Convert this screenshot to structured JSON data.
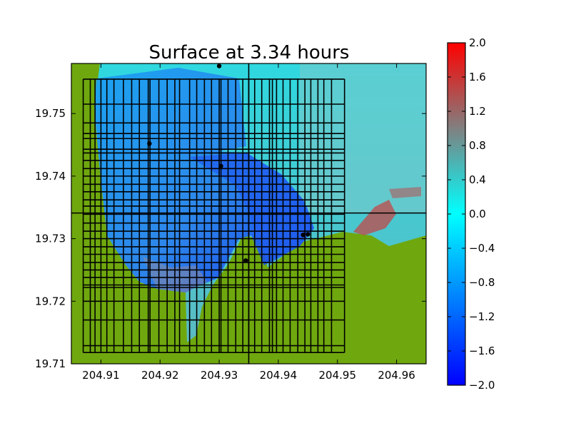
{
  "chart_data": {
    "type": "heatmap",
    "title": "Surface at 3.34 hours",
    "xlim": [
      204.905,
      204.965
    ],
    "ylim": [
      19.71,
      19.758
    ],
    "x_ticks": [
      {
        "value": 204.91,
        "label": "204.91"
      },
      {
        "value": 204.92,
        "label": "204.92"
      },
      {
        "value": 204.93,
        "label": "204.93"
      },
      {
        "value": 204.94,
        "label": "204.94"
      },
      {
        "value": 204.95,
        "label": "204.95"
      },
      {
        "value": 204.96,
        "label": "204.96"
      }
    ],
    "y_ticks": [
      {
        "value": 19.71,
        "label": "19.71"
      },
      {
        "value": 19.72,
        "label": "19.72"
      },
      {
        "value": 19.73,
        "label": "19.73"
      },
      {
        "value": 19.74,
        "label": "19.74"
      },
      {
        "value": 19.75,
        "label": "19.75"
      }
    ],
    "colorbar": {
      "range": [
        -2.0,
        2.0
      ],
      "colors": {
        "low": "#0000ff",
        "mid": "#00ffff",
        "mid_high": "#808080",
        "high": "#ff0000"
      },
      "ticks": [
        {
          "value": 2.0,
          "label": "2.0"
        },
        {
          "value": 1.6,
          "label": "1.6"
        },
        {
          "value": 1.2,
          "label": "1.2"
        },
        {
          "value": 0.8,
          "label": "0.8"
        },
        {
          "value": 0.4,
          "label": "0.4"
        },
        {
          "value": 0.0,
          "label": "0.0"
        },
        {
          "value": -0.4,
          "label": "−0.4"
        },
        {
          "value": -0.8,
          "label": "−0.8"
        },
        {
          "value": -1.2,
          "label": "−1.2"
        },
        {
          "value": -1.6,
          "label": "−1.6"
        },
        {
          "value": -2.0,
          "label": "−2.0"
        }
      ]
    },
    "land_color": "#6fa80e",
    "gauges": [
      {
        "x": 204.93,
        "y": 19.7576
      },
      {
        "x": 204.9182,
        "y": 19.7452
      },
      {
        "x": 204.9303,
        "y": 19.7416
      },
      {
        "x": 204.9345,
        "y": 19.7265
      },
      {
        "x": 204.9442,
        "y": 19.7306
      },
      {
        "x": 204.945,
        "y": 19.7307
      }
    ],
    "grid_x": [
      204.907,
      204.9082,
      204.909,
      204.91,
      204.911,
      204.9122,
      204.9138,
      204.9152,
      204.9165,
      204.918,
      204.9183,
      204.9198,
      204.9212,
      204.9225,
      204.9233,
      204.925,
      204.9262,
      204.9275,
      204.9287,
      204.93,
      204.9303,
      204.9315,
      204.9328,
      204.934,
      204.935,
      204.936,
      204.9372,
      204.9385,
      204.939,
      204.9397,
      204.9408,
      204.942,
      204.9433,
      204.9445,
      204.9455,
      204.9467,
      204.9477,
      204.949,
      204.9512
    ],
    "grid_y": [
      19.7118,
      19.7129,
      19.717,
      19.72,
      19.7222,
      19.7226,
      19.7238,
      19.725,
      19.7262,
      19.7275,
      19.7287,
      19.73,
      19.7312,
      19.7325,
      19.7339,
      19.7352,
      19.7362,
      19.7375,
      19.7387,
      19.74,
      19.7412,
      19.7425,
      19.7437,
      19.7443,
      19.746,
      19.7468,
      19.7485,
      19.7515,
      19.7555
    ]
  }
}
